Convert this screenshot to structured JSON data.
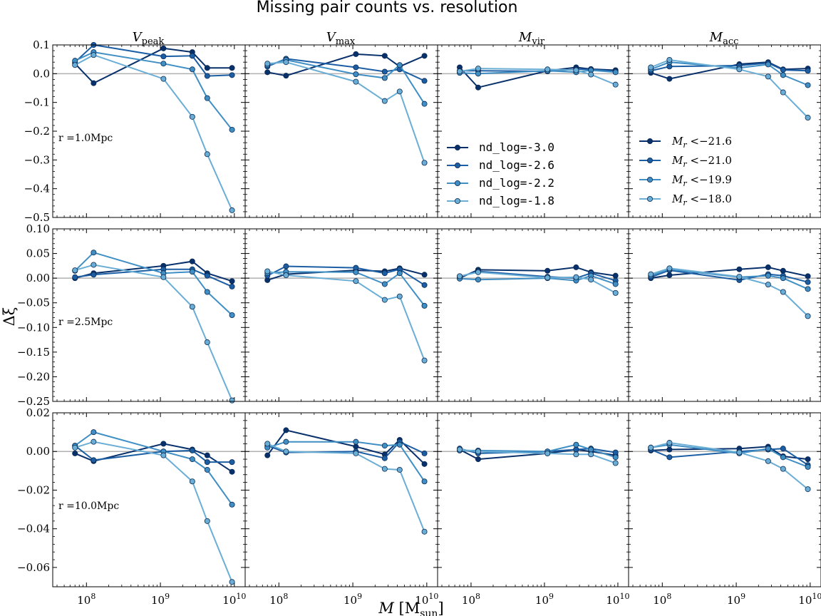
{
  "figure": {
    "title": "Missing pair counts vs. resolution",
    "xlabel_main": "M",
    "xlabel_unit": "[M",
    "xlabel_unit_sub": "sun",
    "xlabel_unit_close": "]",
    "ylabel": "Δξ",
    "col_titles": [
      {
        "main": "V",
        "sub": "peak"
      },
      {
        "main": "V",
        "sub": "max"
      },
      {
        "main": "M",
        "sub": "vir"
      },
      {
        "main": "M",
        "sub": "acc"
      }
    ],
    "row_labels": [
      "r =1.0Mpc",
      "r =2.5Mpc",
      "r =10.0Mpc"
    ],
    "x_ticks": [
      {
        "base": "10",
        "exp": "8"
      },
      {
        "base": "10",
        "exp": "9"
      },
      {
        "base": "10",
        "exp": "10"
      }
    ],
    "legend_nd": [
      "nd_log=-3.0",
      "nd_log=-2.6",
      "nd_log=-2.2",
      "nd_log=-1.8"
    ],
    "legend_mr": [
      {
        "label": "M",
        "sub": "r",
        "rest": " <−21.6"
      },
      {
        "label": "M",
        "sub": "r",
        "rest": " <−21.0"
      },
      {
        "label": "M",
        "sub": "r",
        "rest": " <−19.9"
      },
      {
        "label": "M",
        "sub": "r",
        "rest": " <−18.0"
      }
    ],
    "series_colors": [
      "#08306b",
      "#1c5ea4",
      "#3f8fc5",
      "#6aaed6"
    ],
    "zero_line_color": "#b0b0b0"
  },
  "chart_data": {
    "type": "line",
    "xscale": "log",
    "xlim": [
      35000000,
      14000000000
    ],
    "x": [
      70000000,
      125000000,
      1100000000,
      2700000000,
      4300000000,
      9300000000
    ],
    "rows": [
      {
        "ylim": [
          -0.5,
          0.1
        ],
        "yticks": [
          0.1,
          0.0,
          -0.1,
          -0.2,
          -0.3,
          -0.4,
          -0.5
        ],
        "ytick_labels": [
          "0.1",
          "0.0",
          "−0.1",
          "−0.2",
          "−0.3",
          "−0.4",
          "−0.5"
        ]
      },
      {
        "ylim": [
          -0.25,
          0.1
        ],
        "yticks": [
          0.1,
          0.05,
          0.0,
          -0.05,
          -0.1,
          -0.15,
          -0.2,
          -0.25
        ],
        "ytick_labels": [
          "0.10",
          "0.05",
          "0.00",
          "−0.05",
          "−0.10",
          "−0.15",
          "−0.20",
          "−0.25"
        ]
      },
      {
        "ylim": [
          -0.07,
          0.02
        ],
        "yticks": [
          0.02,
          0.0,
          -0.02,
          -0.04,
          -0.06
        ],
        "ytick_labels": [
          "0.02",
          "0.00",
          "−0.02",
          "−0.04",
          "−0.06"
        ]
      }
    ],
    "panels": [
      [
        [
          [
            0.035,
            -0.033,
            0.088,
            0.075,
            0.02,
            0.02
          ],
          [
            0.04,
            0.1,
            0.06,
            0.062,
            -0.008,
            -0.005
          ],
          [
            0.045,
            0.075,
            0.035,
            0.015,
            -0.085,
            -0.195
          ],
          [
            0.03,
            0.065,
            -0.018,
            -0.15,
            -0.28,
            -0.475
          ]
        ],
        [
          [
            0.005,
            -0.007,
            0.068,
            0.062,
            0.025,
            0.062
          ],
          [
            0.025,
            0.052,
            0.022,
            0.007,
            0.015,
            -0.025
          ],
          [
            0.03,
            0.048,
            -0.002,
            -0.015,
            0.03,
            -0.105
          ],
          [
            0.035,
            0.04,
            -0.028,
            -0.095,
            -0.062,
            -0.31
          ]
        ],
        [
          [
            0.022,
            -0.048,
            0.01,
            0.022,
            0.016,
            0.012
          ],
          [
            0.01,
            0.01,
            0.008,
            0.015,
            0.015,
            0.008
          ],
          [
            0.003,
            0.0,
            0.01,
            0.005,
            0.012,
            0.005
          ],
          [
            0.008,
            0.018,
            0.015,
            0.012,
            -0.003,
            -0.038
          ]
        ],
        [
          [
            0.003,
            -0.018,
            0.033,
            0.04,
            0.015,
            0.018
          ],
          [
            0.01,
            0.025,
            0.028,
            0.037,
            0.013,
            0.01
          ],
          [
            0.015,
            0.04,
            0.02,
            0.032,
            -0.005,
            -0.04
          ],
          [
            0.022,
            0.048,
            0.015,
            -0.01,
            -0.065,
            -0.153
          ]
        ]
      ],
      [
        [
          [
            0.0,
            0.01,
            0.025,
            0.034,
            0.01,
            -0.006
          ],
          [
            0.002,
            0.007,
            0.018,
            0.018,
            0.005,
            -0.017
          ],
          [
            0.015,
            0.052,
            0.01,
            0.013,
            -0.028,
            -0.075
          ],
          [
            0.016,
            0.027,
            0.002,
            -0.058,
            -0.13,
            -0.248
          ]
        ],
        [
          [
            -0.004,
            0.008,
            0.016,
            0.014,
            0.02,
            0.007
          ],
          [
            0.005,
            0.024,
            0.021,
            0.01,
            0.018,
            -0.014
          ],
          [
            0.01,
            0.013,
            0.012,
            -0.012,
            0.01,
            -0.056
          ],
          [
            0.014,
            0.006,
            -0.006,
            -0.044,
            -0.037,
            -0.167
          ]
        ],
        [
          [
            0.0,
            0.017,
            0.015,
            0.022,
            0.012,
            0.005
          ],
          [
            0.003,
            0.014,
            0.003,
            0.0,
            0.01,
            -0.005
          ],
          [
            -0.001,
            -0.003,
            0.0,
            -0.005,
            0.005,
            -0.012
          ],
          [
            0.004,
            0.012,
            0.001,
            0.002,
            -0.003,
            -0.03
          ]
        ],
        [
          [
            0.0,
            0.006,
            0.018,
            0.022,
            0.015,
            0.004
          ],
          [
            0.002,
            0.016,
            -0.004,
            0.008,
            0.005,
            -0.008
          ],
          [
            0.005,
            0.018,
            0.002,
            0.005,
            0.0,
            -0.022
          ],
          [
            0.008,
            0.02,
            0.003,
            -0.013,
            -0.028,
            -0.077
          ]
        ]
      ],
      [
        [
          [
            -0.001,
            -0.005,
            0.004,
            0.001,
            -0.002,
            -0.0105
          ],
          [
            0.003,
            -0.0045,
            0.0,
            0.0005,
            -0.0055,
            -0.0055
          ],
          [
            0.003,
            0.01,
            0.0,
            -0.004,
            -0.0095,
            -0.0275
          ],
          [
            0.002,
            0.005,
            -0.002,
            -0.0155,
            -0.036,
            -0.0675
          ]
        ],
        [
          [
            -0.002,
            0.011,
            0.0025,
            -0.0015,
            0.006,
            -0.0065
          ],
          [
            0.003,
            -0.0005,
            0.0,
            -0.0035,
            0.005,
            -0.001
          ],
          [
            0.002,
            0.005,
            0.005,
            0.003,
            0.0035,
            -0.0155
          ],
          [
            0.004,
            0.0,
            -0.001,
            -0.009,
            -0.0095,
            -0.0415
          ]
        ],
        [
          [
            0.001,
            -0.004,
            -0.001,
            0.001,
            0.0,
            -0.002
          ],
          [
            0.0015,
            -0.001,
            0.0,
            0.001,
            0.0015,
            -0.0005
          ],
          [
            0.0005,
            0.0005,
            0.0,
            0.0035,
            0.001,
            -0.003
          ],
          [
            0.001,
            0.0,
            -0.001,
            -0.0015,
            -0.0015,
            -0.006
          ]
        ],
        [
          [
            0.0005,
            0.001,
            0.0015,
            0.0025,
            -0.0025,
            -0.004
          ],
          [
            0.001,
            -0.003,
            0.0,
            0.001,
            0.0015,
            -0.007
          ],
          [
            0.002,
            0.0035,
            -0.001,
            0.0015,
            -0.003,
            -0.008
          ],
          [
            0.002,
            0.0045,
            -0.0005,
            -0.005,
            -0.009,
            -0.0195
          ]
        ]
      ]
    ]
  }
}
